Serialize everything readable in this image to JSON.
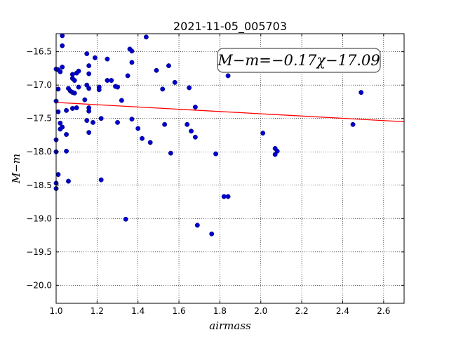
{
  "chart_data": {
    "type": "scatter",
    "title": "2021-11-05_005703",
    "xlabel": "airmass",
    "ylabel": "M−m",
    "xlim": [
      1.0,
      2.7
    ],
    "ylim": [
      -20.27,
      -16.23
    ],
    "y_inverted": true,
    "grid": true,
    "grid_style": "dotted",
    "x_ticks": [
      1.0,
      1.2,
      1.4,
      1.6,
      1.8,
      2.0,
      2.2,
      2.4,
      2.6
    ],
    "x_tick_labels": [
      "1.0",
      "1.2",
      "1.4",
      "1.6",
      "1.8",
      "2.0",
      "2.2",
      "2.4",
      "2.6"
    ],
    "y_ticks": [
      -16.5,
      -17.0,
      -17.5,
      -18.0,
      -18.5,
      -19.0,
      -19.5,
      -20.0
    ],
    "y_tick_labels": [
      "−16.5",
      "−17.0",
      "−17.5",
      "−18.0",
      "−18.5",
      "−19.0",
      "−19.5",
      "−20.0"
    ],
    "annotation": "M−m=−0.17χ−17.09",
    "fit_line": {
      "slope": -0.17,
      "intercept": -17.09,
      "color": "#ff0000"
    },
    "marker_color": "#0000cc",
    "points": [
      [
        1.0,
        -16.76
      ],
      [
        1.0,
        -17.24
      ],
      [
        1.0,
        -17.82
      ],
      [
        1.0,
        -18.0
      ],
      [
        1.0,
        -18.47
      ],
      [
        1.0,
        -18.55
      ],
      [
        1.01,
        -16.77
      ],
      [
        1.01,
        -17.06
      ],
      [
        1.01,
        -17.4
      ],
      [
        1.01,
        -18.34
      ],
      [
        1.02,
        -16.8
      ],
      [
        1.02,
        -17.57
      ],
      [
        1.02,
        -17.66
      ],
      [
        1.03,
        -16.26
      ],
      [
        1.03,
        -16.41
      ],
      [
        1.03,
        -16.73
      ],
      [
        1.03,
        -17.63
      ],
      [
        1.05,
        -17.38
      ],
      [
        1.05,
        -17.74
      ],
      [
        1.05,
        -17.99
      ],
      [
        1.06,
        -17.05
      ],
      [
        1.06,
        -18.44
      ],
      [
        1.07,
        -17.09
      ],
      [
        1.08,
        -16.84
      ],
      [
        1.08,
        -16.9
      ],
      [
        1.08,
        -17.11
      ],
      [
        1.08,
        -17.35
      ],
      [
        1.09,
        -16.93
      ],
      [
        1.09,
        -17.12
      ],
      [
        1.1,
        -16.82
      ],
      [
        1.1,
        -17.34
      ],
      [
        1.11,
        -16.79
      ],
      [
        1.11,
        -17.03
      ],
      [
        1.14,
        -17.22
      ],
      [
        1.15,
        -16.53
      ],
      [
        1.15,
        -17.0
      ],
      [
        1.15,
        -17.53
      ],
      [
        1.16,
        -16.71
      ],
      [
        1.16,
        -16.83
      ],
      [
        1.16,
        -17.05
      ],
      [
        1.16,
        -17.34
      ],
      [
        1.16,
        -17.39
      ],
      [
        1.16,
        -17.71
      ],
      [
        1.18,
        -17.56
      ],
      [
        1.19,
        -16.59
      ],
      [
        1.21,
        -17.03
      ],
      [
        1.21,
        -17.07
      ],
      [
        1.22,
        -17.5
      ],
      [
        1.22,
        -18.42
      ],
      [
        1.25,
        -16.61
      ],
      [
        1.25,
        -16.93
      ],
      [
        1.27,
        -16.93
      ],
      [
        1.29,
        -17.02
      ],
      [
        1.3,
        -17.03
      ],
      [
        1.3,
        -17.56
      ],
      [
        1.32,
        -17.23
      ],
      [
        1.34,
        -19.01
      ],
      [
        1.35,
        -16.86
      ],
      [
        1.36,
        -16.46
      ],
      [
        1.37,
        -16.49
      ],
      [
        1.37,
        -16.66
      ],
      [
        1.37,
        -17.51
      ],
      [
        1.4,
        -17.65
      ],
      [
        1.42,
        -17.8
      ],
      [
        1.44,
        -16.28
      ],
      [
        1.46,
        -17.86
      ],
      [
        1.49,
        -16.78
      ],
      [
        1.52,
        -17.06
      ],
      [
        1.53,
        -17.59
      ],
      [
        1.55,
        -16.71
      ],
      [
        1.56,
        -18.02
      ],
      [
        1.58,
        -16.96
      ],
      [
        1.64,
        -17.59
      ],
      [
        1.65,
        -17.04
      ],
      [
        1.66,
        -17.69
      ],
      [
        1.68,
        -17.33
      ],
      [
        1.68,
        -17.78
      ],
      [
        1.69,
        -19.1
      ],
      [
        1.76,
        -19.23
      ],
      [
        1.78,
        -18.03
      ],
      [
        1.82,
        -18.67
      ],
      [
        1.84,
        -16.86
      ],
      [
        1.84,
        -18.67
      ],
      [
        2.01,
        -17.72
      ],
      [
        2.07,
        -17.95
      ],
      [
        2.07,
        -18.04
      ],
      [
        2.08,
        -17.99
      ],
      [
        2.45,
        -17.59
      ],
      [
        2.49,
        -17.11
      ]
    ]
  }
}
